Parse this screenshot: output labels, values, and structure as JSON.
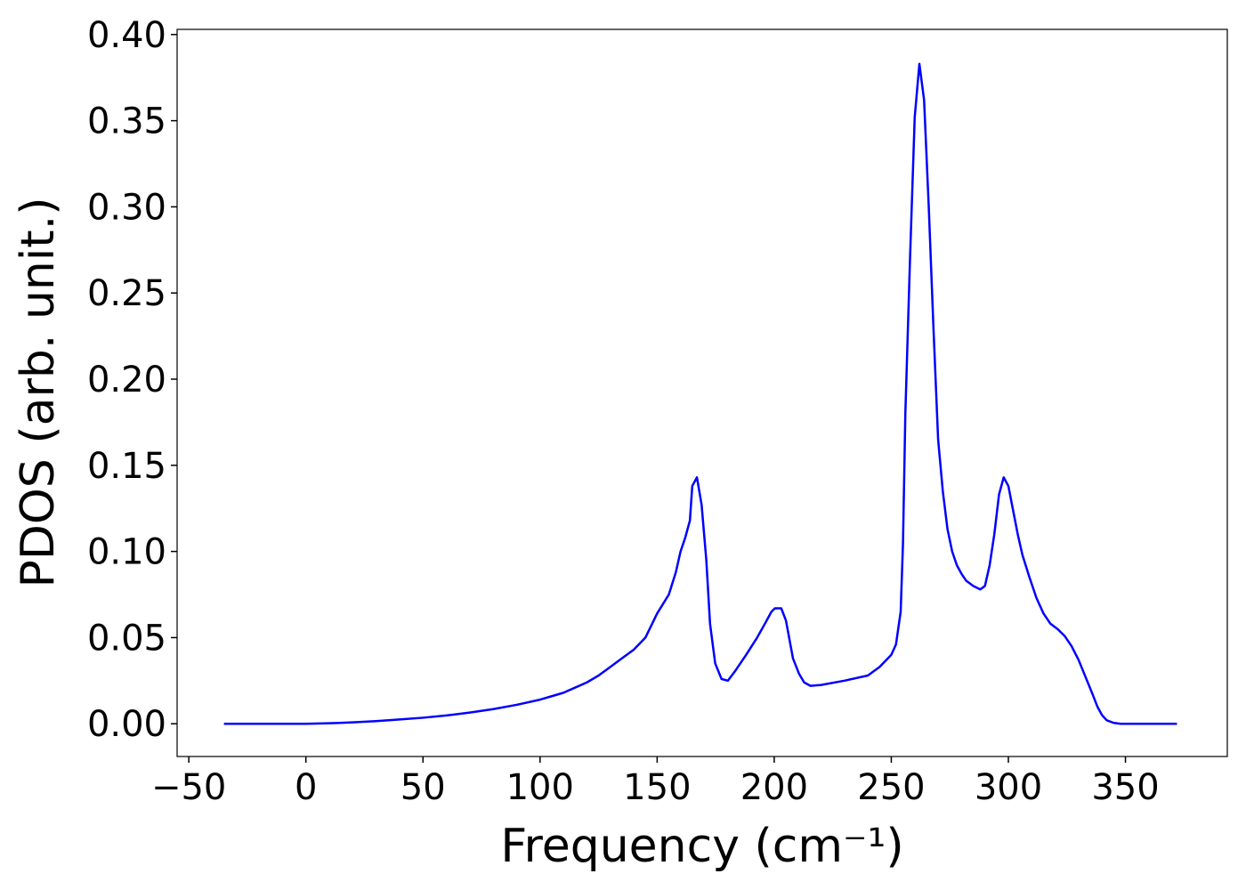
{
  "chart_data": {
    "type": "line",
    "x_label": "Frequency (cm⁻¹)",
    "y_label": "PDOS (arb. unit.)",
    "color": "#0000ff",
    "x": [
      -35,
      0,
      10,
      20,
      30,
      40,
      50,
      60,
      70,
      80,
      90,
      100,
      105,
      110,
      115,
      120,
      125,
      130,
      135,
      140,
      145,
      150,
      155,
      158,
      160,
      162,
      164,
      165,
      167,
      169,
      171,
      172.6,
      174.8,
      177.5,
      180.2,
      183,
      188,
      192.7,
      196,
      198.8,
      200.3,
      203,
      205,
      208,
      210.6,
      212.8,
      215.5,
      220,
      230,
      240,
      245,
      250,
      252,
      254,
      255,
      256,
      258,
      260,
      262,
      264,
      266,
      268,
      270,
      272,
      274,
      276,
      278,
      280,
      282,
      285,
      288,
      290,
      292,
      294,
      296,
      298,
      300,
      302,
      304,
      306,
      309,
      312,
      315,
      318,
      321,
      324,
      327,
      330,
      333,
      336,
      338,
      340,
      342,
      345,
      348,
      372
    ],
    "values": [
      0,
      0,
      0.0003,
      0.0008,
      0.0015,
      0.0025,
      0.0035,
      0.0048,
      0.0065,
      0.0085,
      0.011,
      0.014,
      0.016,
      0.018,
      0.021,
      0.024,
      0.028,
      0.033,
      0.038,
      0.043,
      0.05,
      0.064,
      0.075,
      0.088,
      0.1,
      0.108,
      0.118,
      0.138,
      0.143,
      0.127,
      0.095,
      0.058,
      0.035,
      0.026,
      0.025,
      0.03,
      0.04,
      0.05,
      0.058,
      0.065,
      0.067,
      0.067,
      0.06,
      0.038,
      0.029,
      0.024,
      0.022,
      0.0225,
      0.025,
      0.028,
      0.033,
      0.04,
      0.046,
      0.065,
      0.105,
      0.18,
      0.27,
      0.352,
      0.383,
      0.362,
      0.3,
      0.23,
      0.165,
      0.135,
      0.113,
      0.1,
      0.092,
      0.087,
      0.083,
      0.08,
      0.078,
      0.08,
      0.092,
      0.11,
      0.133,
      0.143,
      0.138,
      0.124,
      0.11,
      0.098,
      0.085,
      0.073,
      0.064,
      0.058,
      0.055,
      0.051,
      0.045,
      0.037,
      0.027,
      0.017,
      0.01,
      0.005,
      0.002,
      0.0005,
      0,
      0
    ],
    "xlim": [
      -55,
      393.5
    ],
    "ylim": [
      -0.019,
      0.403
    ],
    "xticks": [
      {
        "value": -50,
        "label": "−50"
      },
      0,
      50,
      100,
      150,
      200,
      250,
      300,
      350
    ],
    "yticks": [
      {
        "value": 0,
        "label": "0.00"
      },
      {
        "value": 0.05,
        "label": "0.05"
      },
      {
        "value": 0.1,
        "label": "0.10"
      },
      {
        "value": 0.15,
        "label": "0.15"
      },
      {
        "value": 0.2,
        "label": "0.20"
      },
      {
        "value": 0.25,
        "label": "0.25"
      },
      {
        "value": 0.3,
        "label": "0.30"
      },
      {
        "value": 0.35,
        "label": "0.35"
      },
      {
        "value": 0.4,
        "label": "0.40"
      }
    ]
  }
}
